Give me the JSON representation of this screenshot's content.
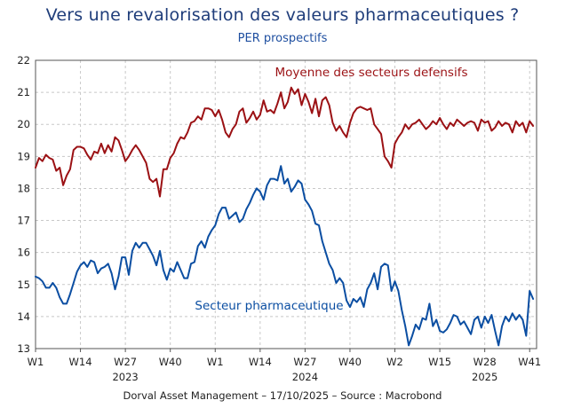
{
  "title": "Vers une revalorisation des valeurs pharmaceutiques ?",
  "subtitle": "PER prospectifs",
  "footer": "Dorval Asset Management – 17/10/2025  –   Source : Macrobond",
  "colors": {
    "defensive": "#9b1114",
    "pharma": "#0b4ea2",
    "grid": "#c8c8c8",
    "text": "#222222"
  },
  "chart_data": {
    "type": "line",
    "title": "Vers une revalorisation des valeurs pharmaceutiques ?",
    "subtitle": "PER prospectifs",
    "ylim": [
      13,
      22
    ],
    "yticks": [
      13,
      14,
      15,
      16,
      17,
      18,
      19,
      20,
      21,
      22
    ],
    "xlim": [
      0,
      145
    ],
    "xticks": [
      {
        "x": 0,
        "label": "W1"
      },
      {
        "x": 13,
        "label": "W14"
      },
      {
        "x": 26,
        "label": "W27"
      },
      {
        "x": 39,
        "label": "W40"
      },
      {
        "x": 52,
        "label": "W1"
      },
      {
        "x": 65,
        "label": "W14"
      },
      {
        "x": 78,
        "label": "W27"
      },
      {
        "x": 91,
        "label": "W40"
      },
      {
        "x": 104,
        "label": "W2"
      },
      {
        "x": 117,
        "label": "W15"
      },
      {
        "x": 130,
        "label": "W28"
      },
      {
        "x": 143,
        "label": "W41"
      }
    ],
    "year_labels": [
      {
        "x": 26,
        "label": "2023"
      },
      {
        "x": 78,
        "label": "2024"
      },
      {
        "x": 130,
        "label": "2025"
      }
    ],
    "series": [
      {
        "name": "Moyenne des secteurs defensifs",
        "color": "#9b1114",
        "points": [
          [
            0,
            18.65
          ],
          [
            1,
            18.95
          ],
          [
            2,
            18.85
          ],
          [
            3,
            19.05
          ],
          [
            4,
            18.95
          ],
          [
            5,
            18.9
          ],
          [
            6,
            18.55
          ],
          [
            7,
            18.65
          ],
          [
            8,
            18.1
          ],
          [
            9,
            18.4
          ],
          [
            10,
            18.6
          ],
          [
            11,
            19.2
          ],
          [
            12,
            19.3
          ],
          [
            13,
            19.3
          ],
          [
            14,
            19.25
          ],
          [
            15,
            19.05
          ],
          [
            16,
            18.9
          ],
          [
            17,
            19.15
          ],
          [
            18,
            19.1
          ],
          [
            19,
            19.4
          ],
          [
            20,
            19.1
          ],
          [
            21,
            19.35
          ],
          [
            22,
            19.15
          ],
          [
            23,
            19.6
          ],
          [
            24,
            19.5
          ],
          [
            25,
            19.2
          ],
          [
            26,
            18.85
          ],
          [
            27,
            19.0
          ],
          [
            28,
            19.2
          ],
          [
            29,
            19.35
          ],
          [
            30,
            19.2
          ],
          [
            31,
            19.0
          ],
          [
            32,
            18.8
          ],
          [
            33,
            18.3
          ],
          [
            34,
            18.2
          ],
          [
            35,
            18.3
          ],
          [
            36,
            17.75
          ],
          [
            37,
            18.6
          ],
          [
            38,
            18.6
          ],
          [
            39,
            18.95
          ],
          [
            40,
            19.1
          ],
          [
            41,
            19.4
          ],
          [
            42,
            19.6
          ],
          [
            43,
            19.55
          ],
          [
            44,
            19.75
          ],
          [
            45,
            20.05
          ],
          [
            46,
            20.1
          ],
          [
            47,
            20.25
          ],
          [
            48,
            20.15
          ],
          [
            49,
            20.5
          ],
          [
            50,
            20.5
          ],
          [
            51,
            20.45
          ],
          [
            52,
            20.25
          ],
          [
            53,
            20.45
          ],
          [
            54,
            20.15
          ],
          [
            55,
            19.75
          ],
          [
            56,
            19.6
          ],
          [
            57,
            19.85
          ],
          [
            58,
            20.0
          ],
          [
            59,
            20.4
          ],
          [
            60,
            20.5
          ],
          [
            61,
            20.05
          ],
          [
            62,
            20.2
          ],
          [
            63,
            20.4
          ],
          [
            64,
            20.15
          ],
          [
            65,
            20.3
          ],
          [
            66,
            20.75
          ],
          [
            67,
            20.4
          ],
          [
            68,
            20.45
          ],
          [
            69,
            20.35
          ],
          [
            70,
            20.65
          ],
          [
            71,
            21.0
          ],
          [
            72,
            20.5
          ],
          [
            73,
            20.7
          ],
          [
            74,
            21.15
          ],
          [
            75,
            20.95
          ],
          [
            76,
            21.1
          ],
          [
            77,
            20.6
          ],
          [
            78,
            20.95
          ],
          [
            79,
            20.7
          ],
          [
            80,
            20.35
          ],
          [
            81,
            20.8
          ],
          [
            82,
            20.25
          ],
          [
            83,
            20.75
          ],
          [
            84,
            20.85
          ],
          [
            85,
            20.6
          ],
          [
            86,
            20.05
          ],
          [
            87,
            19.8
          ],
          [
            88,
            19.95
          ],
          [
            89,
            19.75
          ],
          [
            90,
            19.6
          ],
          [
            91,
            20.05
          ],
          [
            92,
            20.35
          ],
          [
            93,
            20.5
          ],
          [
            94,
            20.55
          ],
          [
            95,
            20.5
          ],
          [
            96,
            20.45
          ],
          [
            97,
            20.5
          ],
          [
            98,
            20.0
          ],
          [
            99,
            19.85
          ],
          [
            100,
            19.7
          ],
          [
            101,
            19.0
          ],
          [
            102,
            18.85
          ],
          [
            103,
            18.65
          ],
          [
            104,
            19.4
          ],
          [
            105,
            19.6
          ],
          [
            106,
            19.75
          ],
          [
            107,
            20.0
          ],
          [
            108,
            19.85
          ],
          [
            109,
            20.0
          ],
          [
            110,
            20.05
          ],
          [
            111,
            20.15
          ],
          [
            112,
            20.0
          ],
          [
            113,
            19.85
          ],
          [
            114,
            19.95
          ],
          [
            115,
            20.1
          ],
          [
            116,
            20.0
          ],
          [
            117,
            20.2
          ],
          [
            118,
            20.0
          ],
          [
            119,
            19.85
          ],
          [
            120,
            20.05
          ],
          [
            121,
            19.95
          ],
          [
            122,
            20.15
          ],
          [
            123,
            20.05
          ],
          [
            124,
            19.95
          ],
          [
            125,
            20.05
          ],
          [
            126,
            20.1
          ],
          [
            127,
            20.05
          ],
          [
            128,
            19.8
          ],
          [
            129,
            20.15
          ],
          [
            130,
            20.05
          ],
          [
            131,
            20.1
          ],
          [
            132,
            19.8
          ],
          [
            133,
            19.9
          ],
          [
            134,
            20.1
          ],
          [
            135,
            19.95
          ],
          [
            136,
            20.05
          ],
          [
            137,
            20.0
          ],
          [
            138,
            19.75
          ],
          [
            139,
            20.1
          ],
          [
            140,
            19.95
          ],
          [
            141,
            20.05
          ],
          [
            142,
            19.75
          ],
          [
            143,
            20.1
          ],
          [
            144,
            19.95
          ]
        ]
      },
      {
        "name": "Secteur pharmaceutique",
        "color": "#0b4ea2",
        "points": [
          [
            0,
            15.25
          ],
          [
            1,
            15.2
          ],
          [
            2,
            15.1
          ],
          [
            3,
            14.9
          ],
          [
            4,
            14.9
          ],
          [
            5,
            15.05
          ],
          [
            6,
            14.9
          ],
          [
            7,
            14.6
          ],
          [
            8,
            14.4
          ],
          [
            9,
            14.4
          ],
          [
            10,
            14.7
          ],
          [
            11,
            15.05
          ],
          [
            12,
            15.4
          ],
          [
            13,
            15.6
          ],
          [
            14,
            15.7
          ],
          [
            15,
            15.55
          ],
          [
            16,
            15.75
          ],
          [
            17,
            15.7
          ],
          [
            18,
            15.35
          ],
          [
            19,
            15.5
          ],
          [
            20,
            15.55
          ],
          [
            21,
            15.65
          ],
          [
            22,
            15.35
          ],
          [
            23,
            14.85
          ],
          [
            24,
            15.25
          ],
          [
            25,
            15.85
          ],
          [
            26,
            15.85
          ],
          [
            27,
            15.3
          ],
          [
            28,
            16.05
          ],
          [
            29,
            16.3
          ],
          [
            30,
            16.15
          ],
          [
            31,
            16.3
          ],
          [
            32,
            16.3
          ],
          [
            33,
            16.1
          ],
          [
            34,
            15.9
          ],
          [
            35,
            15.6
          ],
          [
            36,
            16.05
          ],
          [
            37,
            15.45
          ],
          [
            38,
            15.15
          ],
          [
            39,
            15.5
          ],
          [
            40,
            15.4
          ],
          [
            41,
            15.7
          ],
          [
            42,
            15.45
          ],
          [
            43,
            15.2
          ],
          [
            44,
            15.2
          ],
          [
            45,
            15.65
          ],
          [
            46,
            15.7
          ],
          [
            47,
            16.2
          ],
          [
            48,
            16.35
          ],
          [
            49,
            16.15
          ],
          [
            50,
            16.5
          ],
          [
            51,
            16.7
          ],
          [
            52,
            16.85
          ],
          [
            53,
            17.2
          ],
          [
            54,
            17.4
          ],
          [
            55,
            17.4
          ],
          [
            56,
            17.05
          ],
          [
            57,
            17.15
          ],
          [
            58,
            17.25
          ],
          [
            59,
            16.95
          ],
          [
            60,
            17.05
          ],
          [
            61,
            17.35
          ],
          [
            62,
            17.55
          ],
          [
            63,
            17.8
          ],
          [
            64,
            18.0
          ],
          [
            65,
            17.9
          ],
          [
            66,
            17.65
          ],
          [
            67,
            18.1
          ],
          [
            68,
            18.3
          ],
          [
            69,
            18.3
          ],
          [
            70,
            18.25
          ],
          [
            71,
            18.7
          ],
          [
            72,
            18.15
          ],
          [
            73,
            18.3
          ],
          [
            74,
            17.9
          ],
          [
            75,
            18.05
          ],
          [
            76,
            18.25
          ],
          [
            77,
            18.15
          ],
          [
            78,
            17.65
          ],
          [
            79,
            17.5
          ],
          [
            80,
            17.3
          ],
          [
            81,
            16.9
          ],
          [
            82,
            16.85
          ],
          [
            83,
            16.35
          ],
          [
            84,
            16.0
          ],
          [
            85,
            15.65
          ],
          [
            86,
            15.45
          ],
          [
            87,
            15.05
          ],
          [
            88,
            15.2
          ],
          [
            89,
            15.05
          ],
          [
            90,
            14.5
          ],
          [
            91,
            14.3
          ],
          [
            92,
            14.55
          ],
          [
            93,
            14.45
          ],
          [
            94,
            14.6
          ],
          [
            95,
            14.3
          ],
          [
            96,
            14.85
          ],
          [
            97,
            15.05
          ],
          [
            98,
            15.35
          ],
          [
            99,
            14.85
          ],
          [
            100,
            15.55
          ],
          [
            101,
            15.65
          ],
          [
            102,
            15.6
          ],
          [
            103,
            14.8
          ],
          [
            104,
            15.1
          ],
          [
            105,
            14.8
          ],
          [
            106,
            14.2
          ],
          [
            107,
            13.7
          ],
          [
            108,
            13.1
          ],
          [
            109,
            13.4
          ],
          [
            110,
            13.75
          ],
          [
            111,
            13.6
          ],
          [
            112,
            13.95
          ],
          [
            113,
            13.9
          ],
          [
            114,
            14.4
          ],
          [
            115,
            13.7
          ],
          [
            116,
            13.9
          ],
          [
            117,
            13.55
          ],
          [
            118,
            13.5
          ],
          [
            119,
            13.6
          ],
          [
            120,
            13.8
          ],
          [
            121,
            14.05
          ],
          [
            122,
            14.0
          ],
          [
            123,
            13.75
          ],
          [
            124,
            13.85
          ],
          [
            125,
            13.65
          ],
          [
            126,
            13.45
          ],
          [
            127,
            13.9
          ],
          [
            128,
            14.0
          ],
          [
            129,
            13.65
          ],
          [
            130,
            14.0
          ],
          [
            131,
            13.8
          ],
          [
            132,
            14.05
          ],
          [
            133,
            13.55
          ],
          [
            134,
            13.1
          ],
          [
            135,
            13.7
          ],
          [
            136,
            14.0
          ],
          [
            137,
            13.85
          ],
          [
            138,
            14.1
          ],
          [
            139,
            13.9
          ],
          [
            140,
            14.05
          ],
          [
            141,
            13.9
          ],
          [
            142,
            13.4
          ],
          [
            143,
            14.8
          ],
          [
            144,
            14.55
          ]
        ]
      }
    ]
  }
}
